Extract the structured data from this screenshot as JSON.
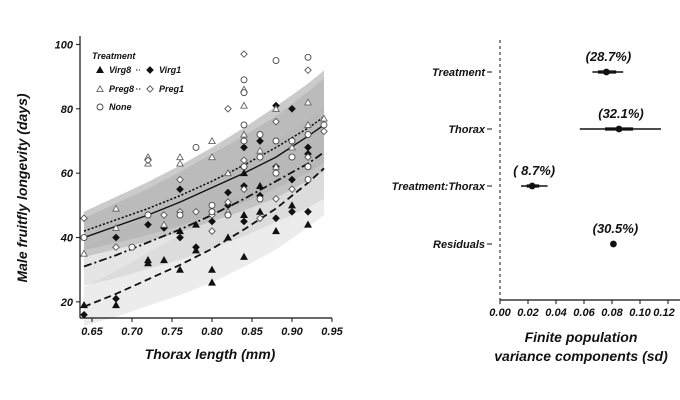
{
  "chart_data": [
    {
      "type": "scatter",
      "xlabel": "Thorax length (mm)",
      "ylabel": "Male fruitfly longevity (days)",
      "xlim": [
        0.635,
        0.95
      ],
      "ylim": [
        15,
        102
      ],
      "xticks": [
        0.65,
        0.7,
        0.75,
        0.8,
        0.85,
        0.9,
        0.95
      ],
      "xtick_labels": [
        "0.65",
        "0.70",
        "0.75",
        "0.80",
        "0.85",
        "0.90",
        "0.95"
      ],
      "yticks": [
        20,
        40,
        60,
        80,
        100
      ],
      "ytick_labels": [
        "20",
        "40",
        "60",
        "80",
        "100"
      ],
      "legend": {
        "title": "Treatment",
        "placement": "top-left",
        "entries": [
          {
            "label": "Virg8",
            "marker": "triangle-filled",
            "line": "dashed"
          },
          {
            "label": "Virg1",
            "marker": "diamond-filled",
            "line": "dashdot"
          },
          {
            "label": "Preg8",
            "marker": "triangle-open",
            "line": "dotted"
          },
          {
            "label": "Preg1",
            "marker": "diamond-open",
            "line": "dotted"
          },
          {
            "label": "None",
            "marker": "circle-open",
            "line": "solid"
          }
        ]
      },
      "series": [
        {
          "name": "Virg8",
          "marker": "triangle-filled",
          "points": [
            [
              0.64,
              19
            ],
            [
              0.68,
              19
            ],
            [
              0.72,
              33
            ],
            [
              0.72,
              32
            ],
            [
              0.74,
              33
            ],
            [
              0.76,
              30
            ],
            [
              0.76,
              42
            ],
            [
              0.78,
              36
            ],
            [
              0.8,
              30
            ],
            [
              0.8,
              26
            ],
            [
              0.82,
              40
            ],
            [
              0.84,
              34
            ],
            [
              0.84,
              47
            ],
            [
              0.86,
              48
            ],
            [
              0.88,
              42
            ],
            [
              0.9,
              50
            ],
            [
              0.92,
              44
            ],
            [
              0.86,
              56
            ],
            [
              0.84,
              60
            ],
            [
              0.78,
              44
            ]
          ],
          "fit": [
            [
              0.64,
              18.5
            ],
            [
              0.68,
              22.5
            ],
            [
              0.72,
              27
            ],
            [
              0.76,
              31.5
            ],
            [
              0.8,
              36.5
            ],
            [
              0.84,
              42.5
            ],
            [
              0.88,
              49
            ],
            [
              0.92,
              57
            ],
            [
              0.94,
              61.5
            ]
          ]
        },
        {
          "name": "Virg1",
          "marker": "diamond-filled",
          "points": [
            [
              0.64,
              16
            ],
            [
              0.68,
              21
            ],
            [
              0.68,
              40
            ],
            [
              0.72,
              44
            ],
            [
              0.74,
              43
            ],
            [
              0.76,
              40
            ],
            [
              0.76,
              55
            ],
            [
              0.78,
              37
            ],
            [
              0.8,
              45
            ],
            [
              0.82,
              50
            ],
            [
              0.82,
              54
            ],
            [
              0.84,
              45
            ],
            [
              0.84,
              56
            ],
            [
              0.84,
              62
            ],
            [
              0.84,
              68
            ],
            [
              0.86,
              53
            ],
            [
              0.88,
              46
            ],
            [
              0.88,
              62
            ],
            [
              0.88,
              81
            ],
            [
              0.9,
              48
            ],
            [
              0.9,
              58
            ],
            [
              0.9,
              80
            ],
            [
              0.92,
              48
            ],
            [
              0.92,
              66
            ],
            [
              0.92,
              68
            ],
            [
              0.86,
              70
            ]
          ],
          "fit": [
            [
              0.64,
              31
            ],
            [
              0.68,
              34.5
            ],
            [
              0.72,
              38.5
            ],
            [
              0.76,
              42.5
            ],
            [
              0.8,
              47
            ],
            [
              0.84,
              52
            ],
            [
              0.88,
              57.5
            ],
            [
              0.92,
              63
            ],
            [
              0.94,
              66.5
            ]
          ]
        },
        {
          "name": "Preg8",
          "marker": "triangle-open",
          "points": [
            [
              0.64,
              35
            ],
            [
              0.68,
              49
            ],
            [
              0.68,
              43
            ],
            [
              0.72,
              65
            ],
            [
              0.72,
              63
            ],
            [
              0.74,
              44
            ],
            [
              0.76,
              65
            ],
            [
              0.76,
              63
            ],
            [
              0.8,
              70
            ],
            [
              0.8,
              65
            ],
            [
              0.82,
              48
            ],
            [
              0.84,
              72
            ],
            [
              0.84,
              81
            ],
            [
              0.84,
              86
            ],
            [
              0.86,
              67
            ],
            [
              0.88,
              62
            ],
            [
              0.88,
              80
            ],
            [
              0.9,
              68
            ],
            [
              0.92,
              75
            ],
            [
              0.92,
              82
            ],
            [
              0.94,
              77
            ],
            [
              0.82,
              60
            ]
          ],
          "fit": [
            [
              0.64,
              42
            ],
            [
              0.68,
              45.5
            ],
            [
              0.72,
              49
            ],
            [
              0.76,
              53
            ],
            [
              0.8,
              57.5
            ],
            [
              0.84,
              62.5
            ],
            [
              0.88,
              68
            ],
            [
              0.92,
              74
            ],
            [
              0.94,
              77.5
            ]
          ]
        },
        {
          "name": "Preg1",
          "marker": "diamond-open",
          "points": [
            [
              0.64,
              46
            ],
            [
              0.68,
              37
            ],
            [
              0.72,
              64
            ],
            [
              0.74,
              47
            ],
            [
              0.76,
              48
            ],
            [
              0.76,
              58
            ],
            [
              0.78,
              48
            ],
            [
              0.8,
              42
            ],
            [
              0.8,
              47
            ],
            [
              0.82,
              51
            ],
            [
              0.82,
              80
            ],
            [
              0.84,
              55
            ],
            [
              0.84,
              64
            ],
            [
              0.84,
              97
            ],
            [
              0.86,
              46
            ],
            [
              0.88,
              52
            ],
            [
              0.88,
              76
            ],
            [
              0.9,
              55
            ],
            [
              0.9,
              70
            ],
            [
              0.92,
              65
            ],
            [
              0.92,
              92
            ],
            [
              0.94,
              73
            ],
            [
              0.84,
              70
            ]
          ],
          "fit": [
            [
              0.64,
              42
            ],
            [
              0.68,
              45.5
            ],
            [
              0.72,
              49
            ],
            [
              0.76,
              53
            ],
            [
              0.8,
              57.5
            ],
            [
              0.84,
              62.5
            ],
            [
              0.88,
              68
            ],
            [
              0.92,
              74
            ],
            [
              0.94,
              77.5
            ]
          ]
        },
        {
          "name": "None",
          "marker": "circle-open",
          "points": [
            [
              0.64,
              40
            ],
            [
              0.7,
              37
            ],
            [
              0.72,
              47
            ],
            [
              0.76,
              47
            ],
            [
              0.78,
              68
            ],
            [
              0.8,
              48
            ],
            [
              0.8,
              50
            ],
            [
              0.82,
              47
            ],
            [
              0.84,
              75
            ],
            [
              0.84,
              89
            ],
            [
              0.84,
              85
            ],
            [
              0.84,
              70
            ],
            [
              0.86,
              52
            ],
            [
              0.86,
              72
            ],
            [
              0.88,
              60
            ],
            [
              0.88,
              70
            ],
            [
              0.88,
              95
            ],
            [
              0.9,
              70
            ],
            [
              0.9,
              65
            ],
            [
              0.92,
              58
            ],
            [
              0.92,
              62
            ],
            [
              0.92,
              72
            ],
            [
              0.92,
              96
            ],
            [
              0.94,
              75
            ],
            [
              0.84,
              62
            ],
            [
              0.86,
              65
            ]
          ],
          "fit": [
            [
              0.64,
              40
            ],
            [
              0.68,
              43.5
            ],
            [
              0.72,
              47
            ],
            [
              0.76,
              51
            ],
            [
              0.8,
              55.5
            ],
            [
              0.84,
              60
            ],
            [
              0.88,
              65
            ],
            [
              0.92,
              71.5
            ],
            [
              0.94,
              75
            ]
          ]
        }
      ]
    },
    {
      "type": "forest",
      "xlabel": [
        "Finite population",
        "variance components (sd)"
      ],
      "xlim": [
        0,
        0.12
      ],
      "xticks": [
        0,
        0.02,
        0.04,
        0.06,
        0.08,
        0.1,
        0.12
      ],
      "xtick_labels": [
        "0.00",
        "0.02",
        "0.04",
        "0.06",
        "0.08",
        "0.10",
        "0.12"
      ],
      "reference_line": 0,
      "rows": [
        {
          "label": "Treatment",
          "estimate": 0.076,
          "inner": [
            0.07,
            0.083
          ],
          "outer": [
            0.066,
            0.088
          ],
          "percent": "(28.7%)"
        },
        {
          "label": "Thorax",
          "estimate": 0.085,
          "inner": [
            0.075,
            0.095
          ],
          "outer": [
            0.057,
            0.115
          ],
          "percent": "(32.1%)"
        },
        {
          "label": "Treatment:Thorax",
          "estimate": 0.023,
          "inner": [
            0.019,
            0.028
          ],
          "outer": [
            0.015,
            0.034
          ],
          "percent": "( 8.7%)"
        },
        {
          "label": "Residuals",
          "estimate": 0.081,
          "inner": [
            0.08,
            0.082
          ],
          "outer": [
            0.08,
            0.082
          ],
          "percent": "(30.5%)"
        }
      ]
    }
  ]
}
